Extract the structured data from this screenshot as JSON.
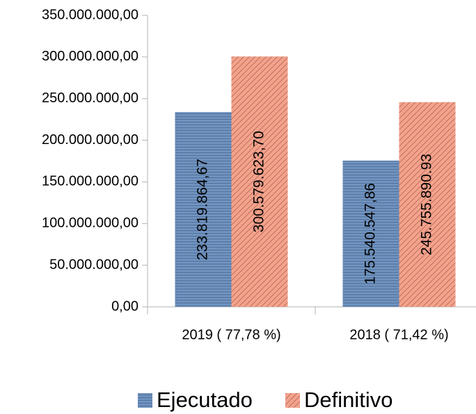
{
  "chart_data": {
    "type": "bar",
    "categories": [
      "2019 ( 77,78 %)",
      "2018 ( 71,42  %)"
    ],
    "series": [
      {
        "name": "Ejecutado",
        "color": "#7092be",
        "values": [
          233819864.67,
          175540547.86
        ],
        "value_labels": [
          "233.819.864,67",
          "175.540.547,86"
        ]
      },
      {
        "name": "Definitivo",
        "color": "#f4a28c",
        "values": [
          300579623.7,
          245755890.93
        ],
        "value_labels": [
          "300.579.623,70",
          "245.755.890.93"
        ]
      }
    ],
    "ylim": [
      0,
      350000000
    ],
    "yticks": [
      {
        "value": 0,
        "label": "0,00"
      },
      {
        "value": 50000000,
        "label": "50.000.000,00"
      },
      {
        "value": 100000000,
        "label": "100.000.000,00"
      },
      {
        "value": 150000000,
        "label": "150.000.000,00"
      },
      {
        "value": 200000000,
        "label": "200.000.000,00"
      },
      {
        "value": 250000000,
        "label": "250.000.000,00"
      },
      {
        "value": 300000000,
        "label": "300.000.000,00"
      },
      {
        "value": 350000000,
        "label": "350.000.000,00"
      }
    ],
    "legend": "bottom"
  }
}
